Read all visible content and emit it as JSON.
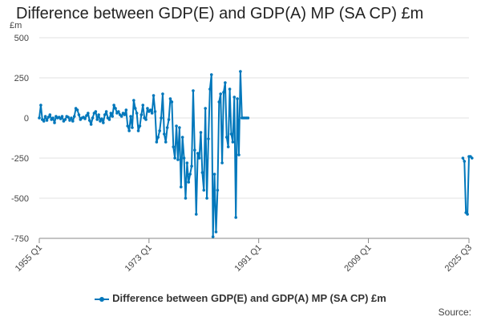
{
  "chart_data": {
    "type": "line",
    "title": "Difference between GDP(E) and GDP(A) MP (SA CP) £m",
    "unit_label": "£m",
    "ylim": [
      -750,
      500
    ],
    "y_ticks": [
      500,
      250,
      0,
      -250,
      -500,
      -750
    ],
    "x_range_quarters": [
      0,
      282
    ],
    "x_ticks": [
      {
        "label": "1955 Q1",
        "q": 0
      },
      {
        "label": "1973 Q1",
        "q": 72
      },
      {
        "label": "1991 Q1",
        "q": 144
      },
      {
        "label": "2009 Q1",
        "q": 216
      },
      {
        "label": "2025 Q3",
        "q": 282
      }
    ],
    "series": [
      {
        "name": "Difference between GDP(E) and GDP(A) MP (SA CP) £m",
        "color": "#0077bb",
        "segments": [
          {
            "start_q": 0,
            "values": [
              0,
              80,
              -10,
              -20,
              10,
              -15,
              5,
              20,
              -10,
              0,
              -30,
              10,
              0,
              5,
              -5,
              10,
              -20,
              -10,
              10,
              5,
              -15,
              0,
              -20,
              10,
              60,
              50,
              20,
              -10,
              0,
              5,
              -5,
              15,
              30,
              -15,
              -40,
              0,
              30,
              40,
              -10,
              20,
              -20,
              -5,
              -30,
              20,
              40,
              0,
              -10,
              30,
              10,
              80,
              60,
              30,
              40,
              20,
              10,
              30,
              20,
              50,
              -50,
              -80,
              10,
              -60,
              110,
              60,
              30,
              -80,
              -50,
              20,
              80,
              0,
              -10,
              60,
              40,
              50,
              30,
              140,
              40,
              -150,
              -120,
              -80,
              0,
              150,
              -100,
              -150,
              -60,
              -10,
              120,
              100,
              -180,
              -250,
              -50,
              -260,
              -60,
              -430,
              -120,
              -250,
              -500,
              -280,
              -400,
              -350,
              -300,
              170,
              -200,
              -600,
              -220,
              -250,
              -90,
              -340,
              -450,
              60,
              -500,
              -130,
              180,
              270,
              -740,
              -350,
              -710,
              -450,
              100,
              150,
              -280,
              160,
              220,
              -120,
              -180,
              180,
              -100,
              -150,
              130,
              -620,
              120,
              -230,
              290,
              0,
              0,
              0,
              0,
              0
            ]
          },
          {
            "start_q": 278,
            "values": [
              -250,
              -270,
              -590,
              -600,
              -240,
              -240,
              -250
            ]
          }
        ]
      }
    ],
    "legend": "bottom-center",
    "source_label": "Source:"
  }
}
